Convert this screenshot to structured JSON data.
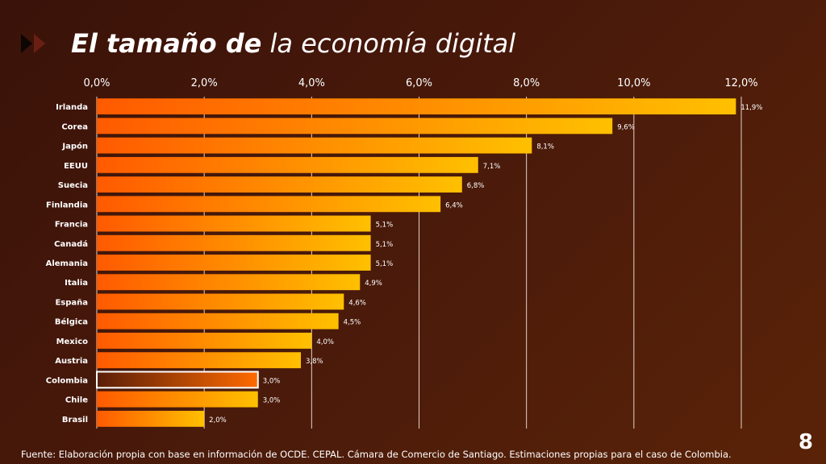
{
  "title": {
    "bold": "El tamaño de",
    "rest": "la economía digital"
  },
  "footnote": "Fuente: Elaboración propia con base en información de OCDE. CEPAL. Cámara de Comercio de Santiago. Estimaciones propias para el caso de Colombia.",
  "page_number": "8",
  "colors": {
    "bar_start": "#ff5a00",
    "bar_end": "#ffc000",
    "highlight_start": "#5a1e08",
    "highlight_end": "#ff6a00",
    "highlight_border": "#ffffff",
    "grid": "#e6d3c8"
  },
  "chart_data": {
    "type": "bar",
    "orientation": "horizontal",
    "categories": [
      "Irlanda",
      "Corea",
      "Japón",
      "EEUU",
      "Suecia",
      "Finlandia",
      "Francia",
      "Canadá",
      "Alemania",
      "Italia",
      "España",
      "Bélgica",
      "Mexico",
      "Austria",
      "Colombia",
      "Chile",
      "Brasil"
    ],
    "values": [
      11.9,
      9.6,
      8.1,
      7.1,
      6.8,
      6.4,
      5.1,
      5.1,
      5.1,
      4.9,
      4.6,
      4.5,
      4.0,
      3.8,
      3.0,
      3.0,
      2.0
    ],
    "value_labels": [
      "11,9%",
      "9,6%",
      "8,1%",
      "7,1%",
      "6,8%",
      "6,4%",
      "5,1%",
      "5,1%",
      "5,1%",
      "4,9%",
      "4,6%",
      "4,5%",
      "4,0%",
      "3,8%",
      "3,0%",
      "3,0%",
      "2,0%"
    ],
    "highlight": "Colombia",
    "xlim": [
      0,
      12
    ],
    "xticks": [
      0,
      2,
      4,
      6,
      8,
      10,
      12
    ],
    "xtick_labels": [
      "0,0%",
      "2,0%",
      "4,0%",
      "6,0%",
      "8,0%",
      "10,0%",
      "12,0%"
    ],
    "axis_position": "top",
    "grid": true
  }
}
